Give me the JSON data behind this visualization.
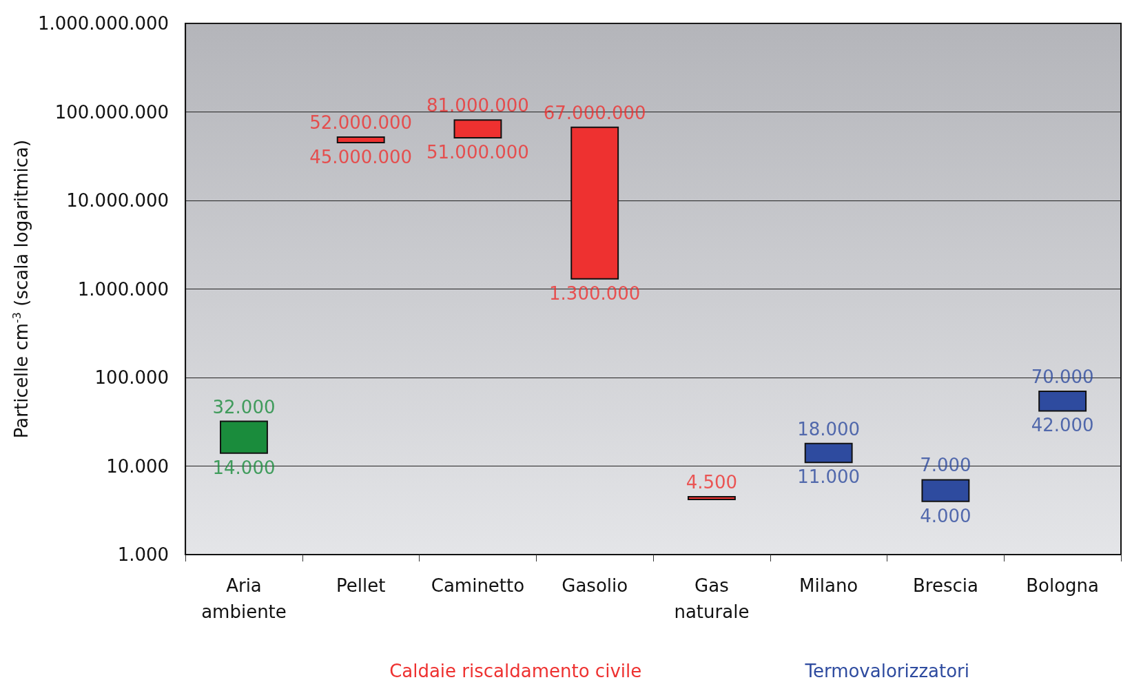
{
  "chart_data": {
    "type": "bar",
    "ylabel": "Particelle cm$^{-3}$ (scala logaritmica)",
    "categories": [
      "Aria\nambiente",
      "Pellet",
      "Caminetto",
      "Gasolio",
      "Gas\nnaturale",
      "Milano",
      "Brescia",
      "Bologna"
    ],
    "base": [
      14000,
      45000000,
      51000000,
      1300000,
      4200,
      11000,
      4000,
      42000
    ],
    "values": [
      18000,
      7000000,
      30000000,
      65700000,
      300,
      7000,
      3000,
      28000
    ],
    "colors": [
      "#1a8c3c",
      "#ee3130",
      "#ee3130",
      "#ee3130",
      "#ee3130",
      "#2e4b9f",
      "#2e4b9f",
      "#2e4b9f"
    ],
    "log": "y",
    "ylim": [
      1000,
      1000000000
    ],
    "yticks": [
      {
        "value": 1000,
        "label": "1.000"
      },
      {
        "value": 10000,
        "label": "10.000"
      },
      {
        "value": 100000,
        "label": "100.000"
      },
      {
        "value": 1000000,
        "label": "1.000.000"
      },
      {
        "value": 10000000,
        "label": "10.000.000"
      },
      {
        "value": 100000000,
        "label": "100.000.000"
      },
      {
        "value": 1000000000,
        "label": "1.000.000.000"
      }
    ],
    "grid": "y",
    "annotations": [
      {
        "text": "32.000",
        "x": "Aria\nambiente",
        "y": 32000
      },
      {
        "text": "14.000",
        "x": "Aria\nambiente",
        "y": 14000
      },
      {
        "text": "52.000.000",
        "x": "Pellet",
        "y": 52000000
      },
      {
        "text": "45.000.000",
        "x": "Pellet",
        "y": 45000000
      },
      {
        "text": "81.000.000",
        "x": "Caminetto",
        "y": 81000000
      },
      {
        "text": "51.000.000",
        "x": "Caminetto",
        "y": 51000000
      },
      {
        "text": "67.000.000",
        "x": "Gasolio",
        "y": 67000000
      },
      {
        "text": "1.300.000",
        "x": "Gasolio",
        "y": 1300000
      },
      {
        "text": "4.500",
        "x": "Gas\nnaturale",
        "y": 4500
      },
      {
        "text": "18.000",
        "x": "Milano",
        "y": 18000
      },
      {
        "text": "11.000",
        "x": "Milano",
        "y": 11000
      },
      {
        "text": "7.000",
        "x": "Brescia",
        "y": 7000
      },
      {
        "text": "4.000",
        "x": "Brescia",
        "y": 4000
      },
      {
        "text": "70.000",
        "x": "Bologna",
        "y": 70000
      },
      {
        "text": "42.000",
        "x": "Bologna",
        "y": 42000
      },
      "Caldaie riscaldamento civile",
      "Termovalorizzatori"
    ]
  }
}
